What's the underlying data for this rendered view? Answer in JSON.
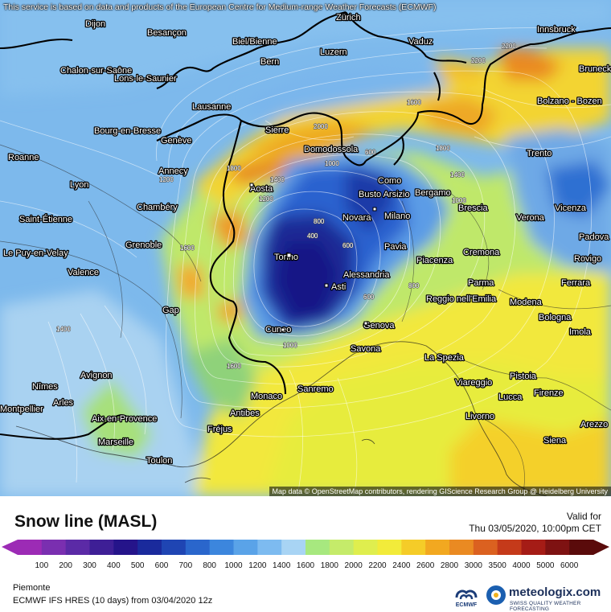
{
  "map": {
    "notice": "This service is based on data and products of the European Centre for Medium-range Weather Forecasts (ECMWF)",
    "attribution": "Map data © OpenStreetMap contributors, rendering GIScience Research Group @ Heidelberg University",
    "cities": [
      "Dijon",
      "Besançon",
      "Zürich",
      "Vaduz",
      "Innsbruck",
      "Biel/Bienne",
      "Luzern",
      "Bern",
      "Chalon-sur-Saône",
      "Lons-le-Saunier",
      "Bruneck - Brunico",
      "Lausanne",
      "Bolzano - Bozen",
      "Bourg-en-Bresse",
      "Genève",
      "Sierre",
      "Domodossola",
      "Trento",
      "Roanne",
      "Annecy",
      "Como",
      "Lyon",
      "Aosta",
      "Busto Arsizio",
      "Bergamo",
      "Chambéry",
      "Brescia",
      "Vicenza",
      "Saint-Étienne",
      "Novara",
      "Milano",
      "Verona",
      "Grenoble",
      "Padova",
      "Le Puy-en-Velay",
      "Torino",
      "Pavia",
      "Rovigo",
      "Valence",
      "Piacenza",
      "Cremona",
      "Alessandria",
      "Parma",
      "Asti",
      "Ferrara",
      "Reggio nell'Emilia",
      "Modena",
      "Gap",
      "Bologna",
      "Cuneo",
      "Genova",
      "Imola",
      "Savona",
      "La Spezia",
      "Avignon",
      "Nîmes",
      "Viareggio",
      "Pistoia",
      "Arles",
      "Monaco",
      "Sanremo",
      "Lucca",
      "Firenze",
      "Montpellier",
      "Antibes",
      "Aix-en-Provence",
      "Livorno",
      "Arezzo",
      "Fréjus",
      "Marseille",
      "Siena",
      "Toulon"
    ],
    "isolines": [
      "400",
      "600",
      "600",
      "800",
      "800",
      "600",
      "1000",
      "1000",
      "1200",
      "1400",
      "1400",
      "1600",
      "1600",
      "1800",
      "2000",
      "2200",
      "2200",
      "1600",
      "1800",
      "1400",
      "1000",
      "1200"
    ]
  },
  "legend": {
    "title": "Snow line (MASL)",
    "valid_label": "Valid for",
    "valid_time": "Thu 03/05/2020, 10:00pm CET",
    "ticks": [
      "100",
      "200",
      "300",
      "400",
      "500",
      "600",
      "700",
      "800",
      "1000",
      "1200",
      "1400",
      "1600",
      "1800",
      "2000",
      "2200",
      "2400",
      "2600",
      "2800",
      "3000",
      "3500",
      "4000",
      "5000",
      "6000"
    ],
    "colors": [
      "#9c2bb5",
      "#7a2fb0",
      "#5b2aa6",
      "#3e1f96",
      "#25148a",
      "#1a2a9c",
      "#1f45b3",
      "#2a66cc",
      "#3c86dd",
      "#5aa3e8",
      "#7dbbf0",
      "#a8d4f4",
      "#a7e87f",
      "#c5eb6a",
      "#dfee4e",
      "#f2eb3a",
      "#f5cc28",
      "#f2a820",
      "#ea8a22",
      "#db6120",
      "#c53a1a",
      "#a51c16",
      "#7e1212",
      "#5a0b0b"
    ],
    "region": "Piemonte",
    "model": "ECMWF IFS HRES (10 days) from 03/04/2020 12z",
    "ecmwf": "ECMWF",
    "brand": "meteologix.com",
    "slogan": "SWISS QUALITY WEATHER FORECASTING"
  }
}
